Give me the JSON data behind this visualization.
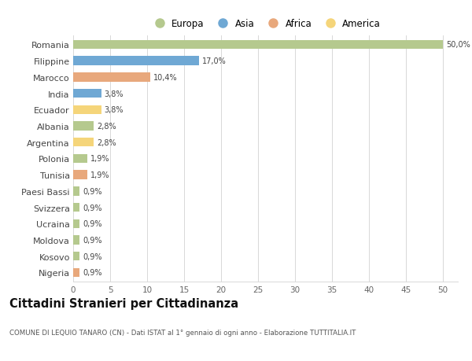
{
  "categories": [
    "Romania",
    "Filippine",
    "Marocco",
    "India",
    "Ecuador",
    "Albania",
    "Argentina",
    "Polonia",
    "Tunisia",
    "Paesi Bassi",
    "Svizzera",
    "Ucraina",
    "Moldova",
    "Kosovo",
    "Nigeria"
  ],
  "values": [
    50.0,
    17.0,
    10.4,
    3.8,
    3.8,
    2.8,
    2.8,
    1.9,
    1.9,
    0.9,
    0.9,
    0.9,
    0.9,
    0.9,
    0.9
  ],
  "labels": [
    "50,0%",
    "17,0%",
    "10,4%",
    "3,8%",
    "3,8%",
    "2,8%",
    "2,8%",
    "1,9%",
    "1,9%",
    "0,9%",
    "0,9%",
    "0,9%",
    "0,9%",
    "0,9%",
    "0,9%"
  ],
  "continents": [
    "Europa",
    "Asia",
    "Africa",
    "Asia",
    "America",
    "Europa",
    "America",
    "Europa",
    "Africa",
    "Europa",
    "Europa",
    "Europa",
    "Europa",
    "Europa",
    "Africa"
  ],
  "continent_colors": {
    "Europa": "#b5c98e",
    "Asia": "#6fa8d4",
    "Africa": "#e8a87c",
    "America": "#f5d57a"
  },
  "legend_labels": [
    "Europa",
    "Asia",
    "Africa",
    "America"
  ],
  "legend_colors": [
    "#b5c98e",
    "#6fa8d4",
    "#e8a87c",
    "#f5d57a"
  ],
  "title": "Cittadini Stranieri per Cittadinanza",
  "subtitle": "COMUNE DI LEQUIO TANARO (CN) - Dati ISTAT al 1° gennaio di ogni anno - Elaborazione TUTTITALIA.IT",
  "xlim": [
    0,
    52
  ],
  "xticks": [
    0,
    5,
    10,
    15,
    20,
    25,
    30,
    35,
    40,
    45,
    50
  ],
  "background_color": "#ffffff",
  "grid_color": "#d8d8d8",
  "bar_height": 0.55
}
